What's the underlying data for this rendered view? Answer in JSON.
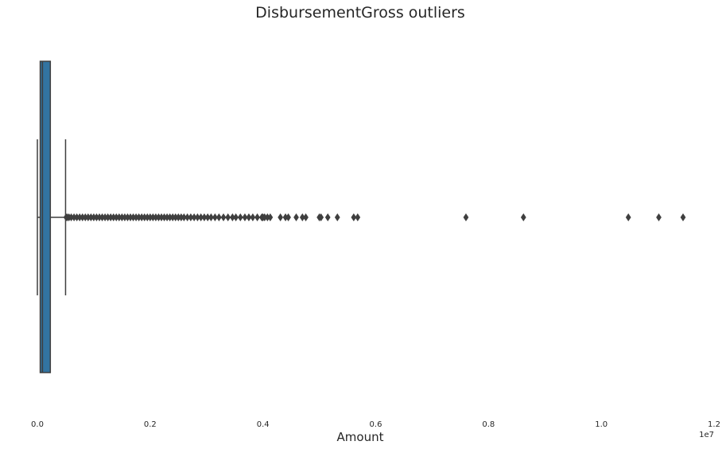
{
  "chart_data": {
    "type": "boxplot",
    "orientation": "horizontal",
    "title": "DisbursementGross outliers",
    "xlabel": "Amount",
    "x_scale_offset": "1e7",
    "xlim": [
      0.0,
      1.2
    ],
    "xticks": [
      0.0,
      0.2,
      0.4,
      0.6,
      0.8,
      1.0,
      1.2
    ],
    "xtick_labels": [
      "0.0",
      "0.2",
      "0.4",
      "0.6",
      "0.8",
      "1.0",
      "1.2"
    ],
    "grid": false,
    "box_color": "#3274a1",
    "line_color": "#3f3f3f",
    "box": {
      "whisker_low": 0.0,
      "q1": 0.005,
      "median": 0.009,
      "q3": 0.023,
      "whisker_high": 0.05
    },
    "outliers": [
      0.051,
      0.053,
      0.056,
      0.06,
      0.065,
      0.07,
      0.075,
      0.08,
      0.085,
      0.09,
      0.095,
      0.1,
      0.105,
      0.11,
      0.115,
      0.12,
      0.125,
      0.13,
      0.135,
      0.14,
      0.145,
      0.15,
      0.155,
      0.16,
      0.165,
      0.17,
      0.175,
      0.18,
      0.185,
      0.19,
      0.195,
      0.2,
      0.205,
      0.21,
      0.215,
      0.22,
      0.225,
      0.23,
      0.235,
      0.24,
      0.245,
      0.25,
      0.255,
      0.26,
      0.266,
      0.272,
      0.278,
      0.284,
      0.29,
      0.296,
      0.302,
      0.308,
      0.315,
      0.322,
      0.33,
      0.338,
      0.346,
      0.352,
      0.36,
      0.368,
      0.375,
      0.382,
      0.39,
      0.398,
      0.4,
      0.403,
      0.408,
      0.413,
      0.431,
      0.44,
      0.445,
      0.459,
      0.47,
      0.476,
      0.5,
      0.503,
      0.515,
      0.532,
      0.561,
      0.568,
      0.76,
      0.862,
      1.048,
      1.102,
      1.145
    ]
  }
}
